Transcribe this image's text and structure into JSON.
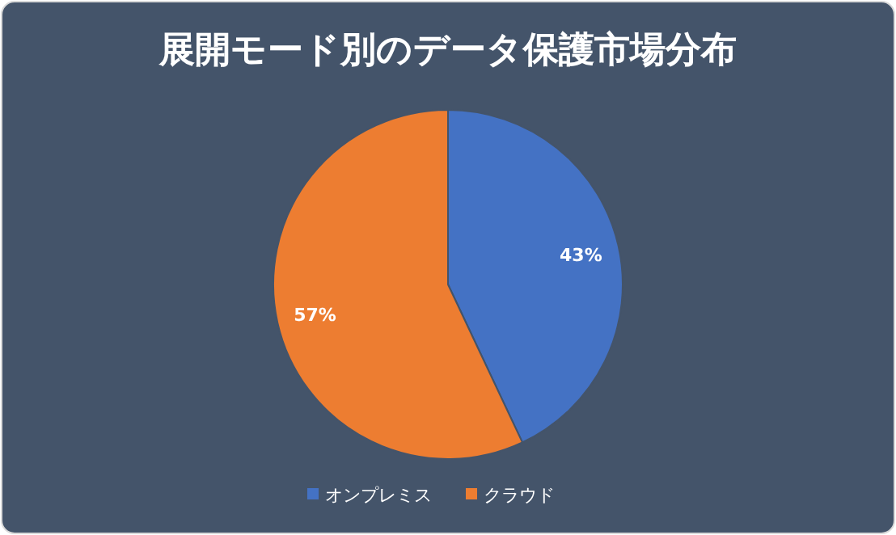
{
  "chart_data": {
    "type": "pie",
    "title": "展開モード別のデータ保護市場分布",
    "categories": [
      "オンプレミス",
      "クラウド"
    ],
    "values": [
      43,
      57
    ],
    "colors": [
      "#4472c4",
      "#ed7d31"
    ],
    "value_labels": [
      "43%",
      "57%"
    ],
    "legend": "bottom"
  }
}
